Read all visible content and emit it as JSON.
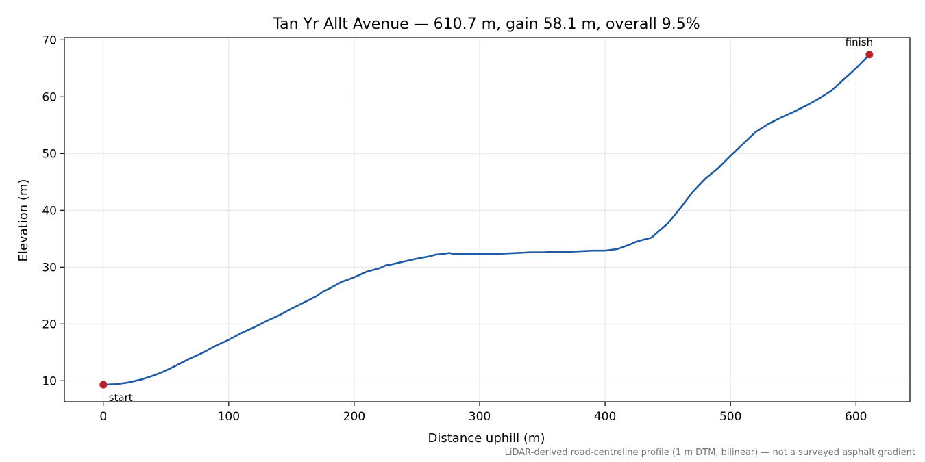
{
  "chart_data": {
    "type": "line",
    "title": "Tan Yr Allt Avenue — 610.7 m, gain 58.1 m, overall 9.5%",
    "xlabel": "Distance uphill (m)",
    "ylabel": "Elevation (m)",
    "xlim": [
      -31,
      643
    ],
    "ylim": [
      6.3,
      70.4
    ],
    "x_ticks": [
      0,
      100,
      200,
      300,
      400,
      500,
      600
    ],
    "y_ticks": [
      10,
      20,
      30,
      40,
      50,
      60,
      70
    ],
    "grid": true,
    "footnote": "LiDAR-derived road-centreline profile (1 m DTM, bilinear) — not a surveyed asphalt gradient",
    "series": [
      {
        "color": "#1f5aa6",
        "x": [
          0,
          10,
          20,
          30,
          40,
          50,
          60,
          70,
          80,
          90,
          100,
          110,
          120,
          130,
          140,
          150,
          160,
          170,
          175,
          180,
          190,
          200,
          210,
          220,
          225,
          230,
          240,
          250,
          260,
          265,
          270,
          276,
          280,
          290,
          300,
          310,
          320,
          330,
          340,
          350,
          360,
          370,
          380,
          390,
          400,
          410,
          420,
          425,
          430,
          437,
          450,
          460,
          470,
          480,
          490,
          500,
          510,
          520,
          530,
          540,
          550,
          560,
          570,
          580,
          590,
          600,
          610.7
        ],
        "y": [
          9.3,
          9.4,
          9.7,
          10.2,
          10.9,
          11.8,
          12.9,
          14.0,
          15.0,
          16.2,
          17.2,
          18.4,
          19.4,
          20.5,
          21.5,
          22.7,
          23.8,
          24.9,
          25.7,
          26.2,
          27.4,
          28.2,
          29.2,
          29.8,
          30.3,
          30.5,
          31.0,
          31.5,
          31.9,
          32.2,
          32.3,
          32.5,
          32.3,
          32.3,
          32.3,
          32.3,
          32.4,
          32.5,
          32.6,
          32.6,
          32.7,
          32.7,
          32.8,
          32.9,
          32.9,
          33.2,
          34.0,
          34.5,
          34.8,
          35.2,
          37.7,
          40.4,
          43.3,
          45.6,
          47.4,
          49.6,
          51.7,
          53.8,
          55.2,
          56.3,
          57.3,
          58.4,
          59.6,
          61.0,
          63.0,
          65.0,
          67.4
        ]
      }
    ],
    "markers": [
      {
        "label": "start",
        "x": 0,
        "y": 9.3,
        "color": "#c0202a"
      },
      {
        "label": "finish",
        "x": 610.7,
        "y": 67.4,
        "color": "#c0202a"
      }
    ]
  }
}
